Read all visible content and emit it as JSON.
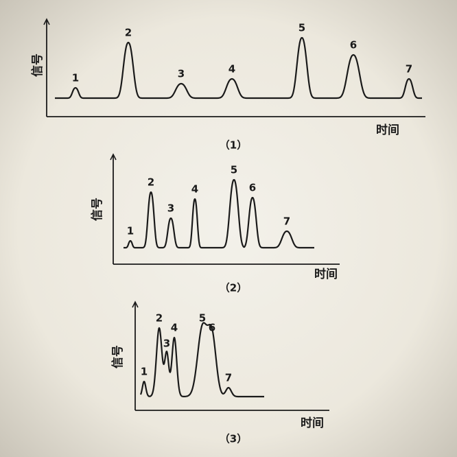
{
  "panels": [
    {
      "peaks": [
        "1",
        "2",
        "3",
        "4",
        "5",
        "6",
        "7"
      ],
      "y_label": "信号",
      "x_label": "时间",
      "caption": "（1）"
    },
    {
      "peaks": [
        "1",
        "2",
        "3",
        "4",
        "5",
        "6",
        "7"
      ],
      "y_label": "信号",
      "x_label": "时间",
      "caption": "（2）"
    },
    {
      "peaks": [
        "1",
        "2",
        "3",
        "4",
        "5",
        "6",
        "7"
      ],
      "y_label": "信号",
      "x_label": "时间",
      "caption": "（3）"
    }
  ]
}
